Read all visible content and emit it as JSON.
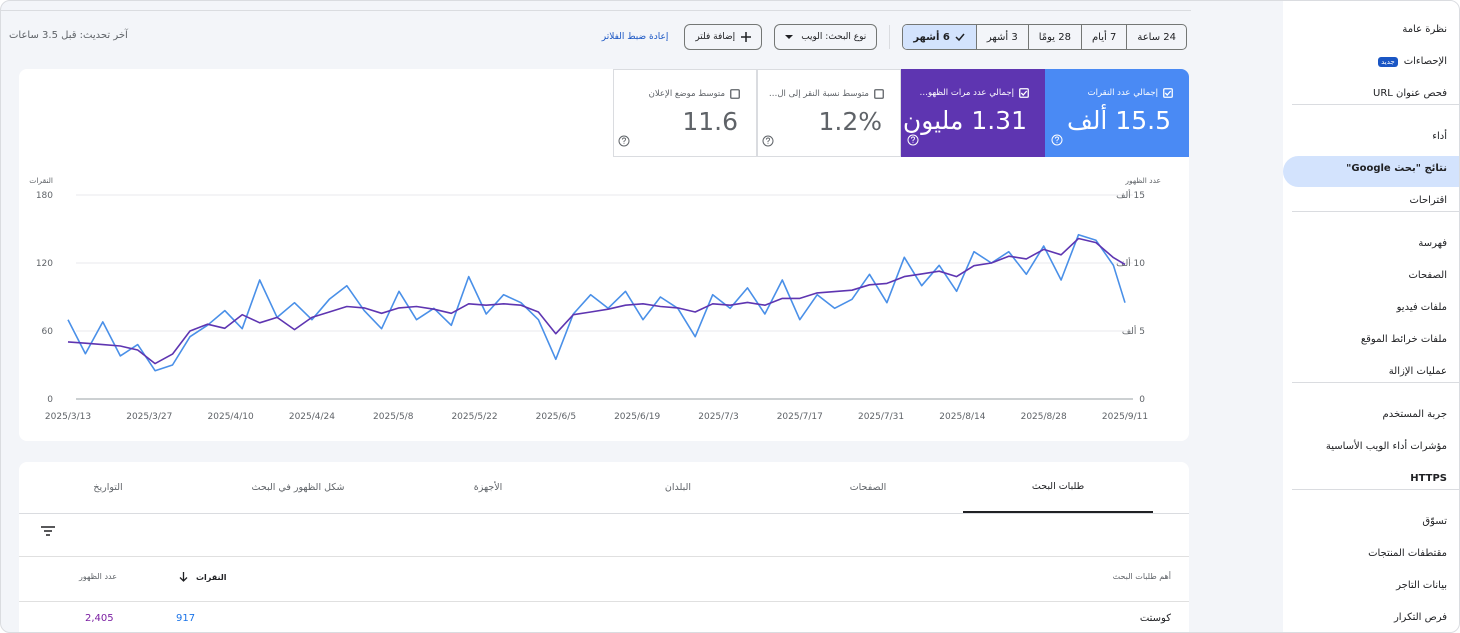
{
  "header": {
    "last_updated": "آخر تحديث: قبل 3.5 ساعات",
    "reset_filters": "إعادة ضبط الفلاتر",
    "add_filter": "إضافة فلتر",
    "search_type": "نوع البحث: الويب",
    "date_ranges": [
      {
        "label": "24 ساعة",
        "selected": false
      },
      {
        "label": "7 أيام",
        "selected": false
      },
      {
        "label": "28 يومًا",
        "selected": false
      },
      {
        "label": "3 أشهر",
        "selected": false
      },
      {
        "label": "6 أشهر",
        "selected": true
      }
    ]
  },
  "nav": [
    [
      {
        "label": "نظرة عامة"
      },
      {
        "label": "الإحصاءات",
        "badge": "جديد"
      },
      {
        "label": "فحص عنوان URL"
      }
    ],
    [
      {
        "label": "أداء"
      },
      {
        "label": "نتائج \"بحث Google\"",
        "selected": true
      },
      {
        "label": "اقتراحات"
      }
    ],
    [
      {
        "label": "فهرسة"
      },
      {
        "label": "الصفحات"
      },
      {
        "label": "ملفات فيديو"
      },
      {
        "label": "ملفات خرائط الموقع"
      },
      {
        "label": "عمليات الإزالة"
      }
    ],
    [
      {
        "label": "جربة المستخدم"
      },
      {
        "label": "مؤشرات أداء الويب الأساسية"
      },
      {
        "label": "HTTPS"
      }
    ],
    [
      {
        "label": "تسوّق"
      },
      {
        "label": "مقتطفات المنتجات"
      },
      {
        "label": "بيانات التاجر"
      },
      {
        "label": "فرص التكرار"
      }
    ]
  ],
  "cards": [
    {
      "label": "إجمالي عدد النقرات",
      "value": "15.5 ألف",
      "checked": true,
      "color": "#4a8af4"
    },
    {
      "label": "إجمالي عدد مرات الظهو…",
      "value": "1.31 مليون",
      "checked": true,
      "color": "#5e35b1"
    },
    {
      "label": "متوسط نسبة النقر إلى ال…",
      "value": "1.2%",
      "checked": false
    },
    {
      "label": "متوسط موضع الإعلان",
      "value": "11.6",
      "checked": false
    }
  ],
  "tabs": [
    {
      "label": "طلبات البحث",
      "active": true
    },
    {
      "label": "الصفحات"
    },
    {
      "label": "البلدان"
    },
    {
      "label": "الأجهزة"
    },
    {
      "label": "شكل الظهور في البحث"
    },
    {
      "label": "التواريخ"
    }
  ],
  "table": {
    "headers": [
      "أهم طلبات البحث",
      "النقرات",
      "عدد الظهور"
    ],
    "rows": [
      [
        "كوستت",
        "917",
        "2,405"
      ]
    ]
  },
  "chart_data": {
    "type": "line",
    "x": [
      "2025/3/13",
      "2025/3/16",
      "2025/3/19",
      "2025/3/22",
      "2025/3/25",
      "2025/3/28",
      "2025/3/31",
      "2025/4/3",
      "2025/4/6",
      "2025/4/9",
      "2025/4/12",
      "2025/4/15",
      "2025/4/18",
      "2025/4/21",
      "2025/4/24",
      "2025/4/27",
      "2025/4/30",
      "2025/5/3",
      "2025/5/6",
      "2025/5/9",
      "2025/5/12",
      "2025/5/15",
      "2025/5/18",
      "2025/5/21",
      "2025/5/24",
      "2025/5/27",
      "2025/5/30",
      "2025/6/2",
      "2025/6/5",
      "2025/6/8",
      "2025/6/11",
      "2025/6/14",
      "2025/6/17",
      "2025/6/20",
      "2025/6/23",
      "2025/6/26",
      "2025/6/29",
      "2025/7/2",
      "2025/7/5",
      "2025/7/8",
      "2025/7/11",
      "2025/7/14",
      "2025/7/17",
      "2025/7/20",
      "2025/7/23",
      "2025/7/26",
      "2025/7/29",
      "2025/8/1",
      "2025/8/4",
      "2025/8/7",
      "2025/8/10",
      "2025/8/13",
      "2025/8/16",
      "2025/8/19",
      "2025/8/22",
      "2025/8/25",
      "2025/8/28",
      "2025/8/31",
      "2025/9/3",
      "2025/9/6",
      "2025/9/9",
      "2025/9/11"
    ],
    "xlim": [
      "2025/3/13",
      "2025/9/11"
    ],
    "xticks": [
      "2025/3/13",
      "2025/3/27",
      "2025/4/10",
      "2025/4/24",
      "2025/5/8",
      "2025/5/22",
      "2025/6/5",
      "2025/6/19",
      "2025/7/3",
      "2025/7/17",
      "2025/7/31",
      "2025/8/14",
      "2025/8/28",
      "2025/9/11"
    ],
    "ylim": [
      0,
      180
    ],
    "yticks": [
      0,
      60,
      120,
      180
    ],
    "y2lim": [
      0,
      15000
    ],
    "y2ticks": [
      0,
      {
        "value": 5000,
        "label": "5 ألف"
      },
      {
        "value": 10000,
        "label": "10 ألف"
      },
      {
        "value": 15000,
        "label": "15 ألف"
      }
    ],
    "grid": true,
    "series": [
      {
        "name": "النقرات",
        "color": "#4a90e8",
        "values": [
          70,
          40,
          68,
          38,
          48,
          25,
          30,
          55,
          65,
          78,
          62,
          105,
          72,
          85,
          70,
          88,
          100,
          78,
          62,
          95,
          70,
          80,
          65,
          108,
          75,
          92,
          85,
          70,
          35,
          75,
          92,
          80,
          95,
          70,
          90,
          80,
          55,
          92,
          80,
          98,
          75,
          105,
          70,
          92,
          80,
          88,
          110,
          85,
          125,
          100,
          118,
          95,
          130,
          120,
          130,
          110,
          135,
          105,
          145,
          140,
          118,
          85
        ]
      },
      {
        "name": "عدد الظهور",
        "axis": "y2",
        "color": "#5e35b1",
        "values": [
          4200,
          4100,
          4000,
          3900,
          3600,
          2600,
          3300,
          5000,
          5500,
          5200,
          6200,
          5600,
          6000,
          5100,
          6000,
          6400,
          6800,
          6700,
          6300,
          6700,
          6800,
          6600,
          6300,
          7000,
          6900,
          7000,
          6900,
          6400,
          4800,
          6200,
          6400,
          6600,
          6900,
          7000,
          6800,
          6700,
          6400,
          7000,
          6900,
          7100,
          6900,
          7400,
          7400,
          7800,
          7900,
          8000,
          8400,
          8500,
          9000,
          9200,
          9400,
          9000,
          9800,
          10000,
          10500,
          10300,
          11000,
          10600,
          11800,
          11500,
          10400,
          9900
        ]
      }
    ]
  }
}
